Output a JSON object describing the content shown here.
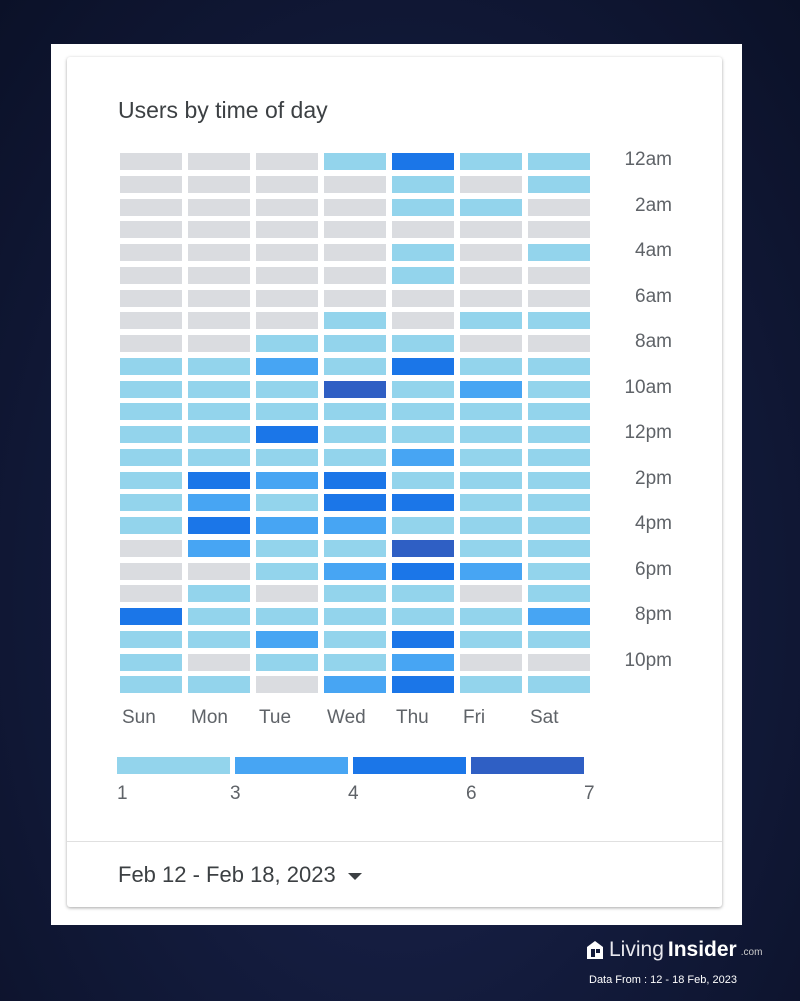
{
  "chart_data": {
    "type": "heatmap",
    "title": "Users by time of day",
    "columns": [
      "Sun",
      "Mon",
      "Tue",
      "Wed",
      "Thu",
      "Fri",
      "Sat"
    ],
    "rows_hours": [
      "12am",
      "1am",
      "2am",
      "3am",
      "4am",
      "5am",
      "6am",
      "7am",
      "8am",
      "9am",
      "10am",
      "11am",
      "12pm",
      "1pm",
      "2pm",
      "3pm",
      "4pm",
      "5pm",
      "6pm",
      "7pm",
      "8pm",
      "9pm",
      "10pm",
      "11pm"
    ],
    "row_tick_labels": [
      "12am",
      "2am",
      "4am",
      "6am",
      "8am",
      "10am",
      "12pm",
      "2pm",
      "4pm",
      "6pm",
      "8pm",
      "10pm"
    ],
    "value_bins_note": "0 = no users, 1..4 = legend bucket index",
    "bins": [
      [
        0,
        0,
        0,
        1,
        3,
        1,
        1
      ],
      [
        0,
        0,
        0,
        0,
        1,
        0,
        1
      ],
      [
        0,
        0,
        0,
        0,
        1,
        1,
        0
      ],
      [
        0,
        0,
        0,
        0,
        0,
        0,
        0
      ],
      [
        0,
        0,
        0,
        0,
        1,
        0,
        1
      ],
      [
        0,
        0,
        0,
        0,
        1,
        0,
        0
      ],
      [
        0,
        0,
        0,
        0,
        0,
        0,
        0
      ],
      [
        0,
        0,
        0,
        1,
        0,
        1,
        1
      ],
      [
        0,
        0,
        1,
        1,
        1,
        0,
        0
      ],
      [
        1,
        1,
        2,
        1,
        3,
        1,
        1
      ],
      [
        1,
        1,
        1,
        4,
        1,
        2,
        1
      ],
      [
        1,
        1,
        1,
        1,
        1,
        1,
        1
      ],
      [
        1,
        1,
        3,
        1,
        1,
        1,
        1
      ],
      [
        1,
        1,
        1,
        1,
        2,
        1,
        1
      ],
      [
        1,
        3,
        2,
        3,
        1,
        1,
        1
      ],
      [
        1,
        2,
        1,
        3,
        3,
        1,
        1
      ],
      [
        1,
        3,
        2,
        2,
        1,
        1,
        1
      ],
      [
        0,
        2,
        1,
        1,
        4,
        1,
        1
      ],
      [
        0,
        0,
        1,
        2,
        3,
        2,
        1
      ],
      [
        0,
        1,
        0,
        1,
        1,
        0,
        1
      ],
      [
        3,
        1,
        1,
        1,
        1,
        1,
        2
      ],
      [
        1,
        1,
        2,
        1,
        3,
        1,
        1
      ],
      [
        1,
        0,
        1,
        1,
        2,
        0,
        0
      ],
      [
        1,
        1,
        0,
        2,
        3,
        1,
        1
      ]
    ],
    "legend": {
      "ticks": [
        "1",
        "3",
        "4",
        "6",
        "7"
      ],
      "colors": [
        "#dadce0",
        "#93d4ec",
        "#47a5f3",
        "#1b76e8",
        "#2f5fc4"
      ]
    }
  },
  "footer": {
    "date_range": "Feb 12 - Feb 18, 2023"
  },
  "branding": {
    "logo_text_light": "Living",
    "logo_text_bold": "Insider",
    "logo_suffix": ".com",
    "source": "Data From : 12 - 18 Feb, 2023"
  }
}
